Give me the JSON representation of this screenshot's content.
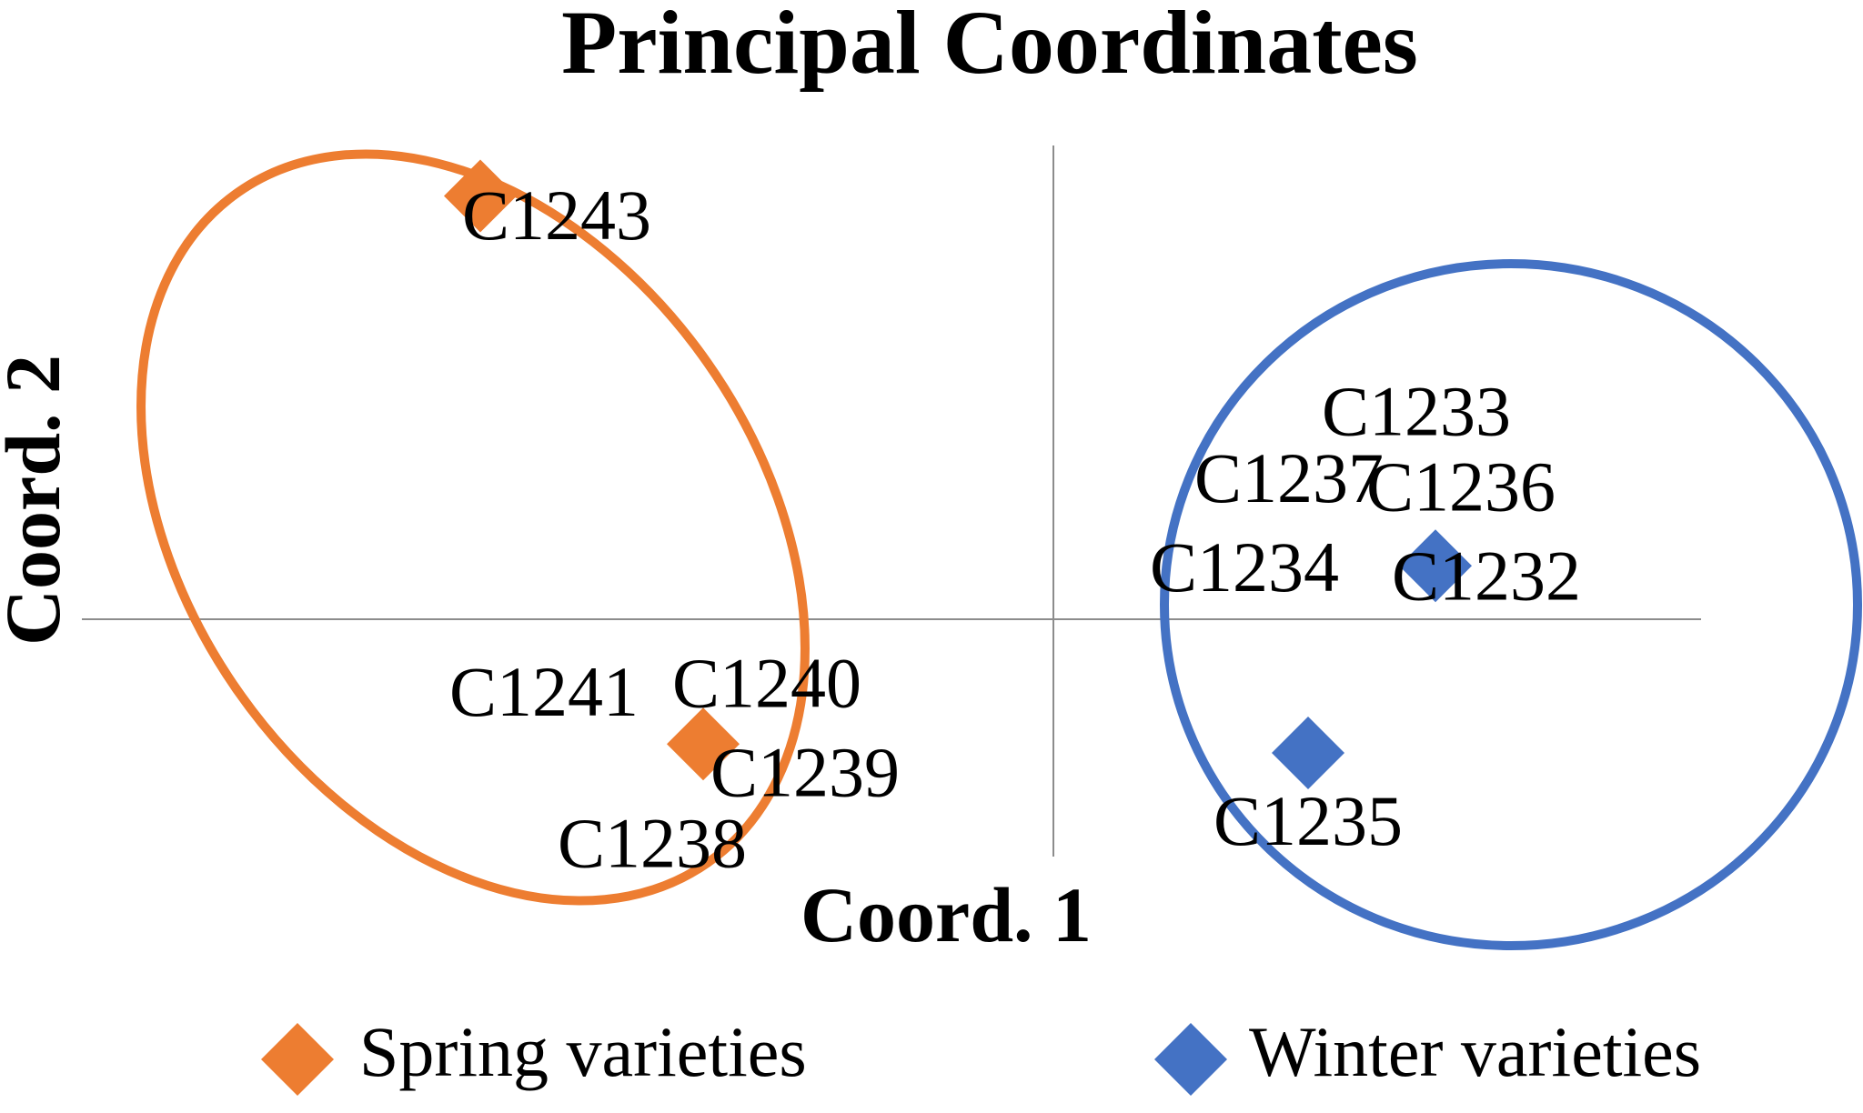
{
  "chart_data": {
    "type": "scatter",
    "title": "Principal Coordinates",
    "xlabel": "Coord. 1",
    "ylabel": "Coord. 2",
    "grid": false,
    "legend_position": "bottom",
    "series": [
      {
        "name": "Spring varieties",
        "color": "#ED7D31",
        "marker": "diamond",
        "points": [
          {
            "x": -0.9,
            "y": 0.95
          },
          {
            "x": -0.55,
            "y": -0.28
          }
        ]
      },
      {
        "name": "Winter varieties",
        "color": "#4472C4",
        "marker": "diamond",
        "points": [
          {
            "x": 0.6,
            "y": 0.12
          },
          {
            "x": 0.4,
            "y": -0.3
          }
        ]
      }
    ],
    "point_labels": [
      {
        "text": "C1243",
        "group": "Spring varieties",
        "x": -0.78,
        "y": 0.89
      },
      {
        "text": "C1241",
        "group": "Spring varieties",
        "x": -0.8,
        "y": -0.18
      },
      {
        "text": "C1240",
        "group": "Spring varieties",
        "x": -0.45,
        "y": -0.16
      },
      {
        "text": "C1239",
        "group": "Spring varieties",
        "x": -0.39,
        "y": -0.36
      },
      {
        "text": "C1238",
        "group": "Spring varieties",
        "x": -0.63,
        "y": -0.52
      },
      {
        "text": "C1233",
        "group": "Winter varieties",
        "x": 0.57,
        "y": 0.45
      },
      {
        "text": "C1237",
        "group": "Winter varieties",
        "x": 0.37,
        "y": 0.3
      },
      {
        "text": "C1236",
        "group": "Winter varieties",
        "x": 0.64,
        "y": 0.28
      },
      {
        "text": "C1234",
        "group": "Winter varieties",
        "x": 0.3,
        "y": 0.1
      },
      {
        "text": "C1232",
        "group": "Winter varieties",
        "x": 0.68,
        "y": 0.08
      },
      {
        "text": "C1235",
        "group": "Winter varieties",
        "x": 0.4,
        "y": -0.47
      }
    ],
    "xlim": [
      -1.0,
      1.0
    ],
    "ylim": [
      -1.0,
      1.0
    ]
  }
}
